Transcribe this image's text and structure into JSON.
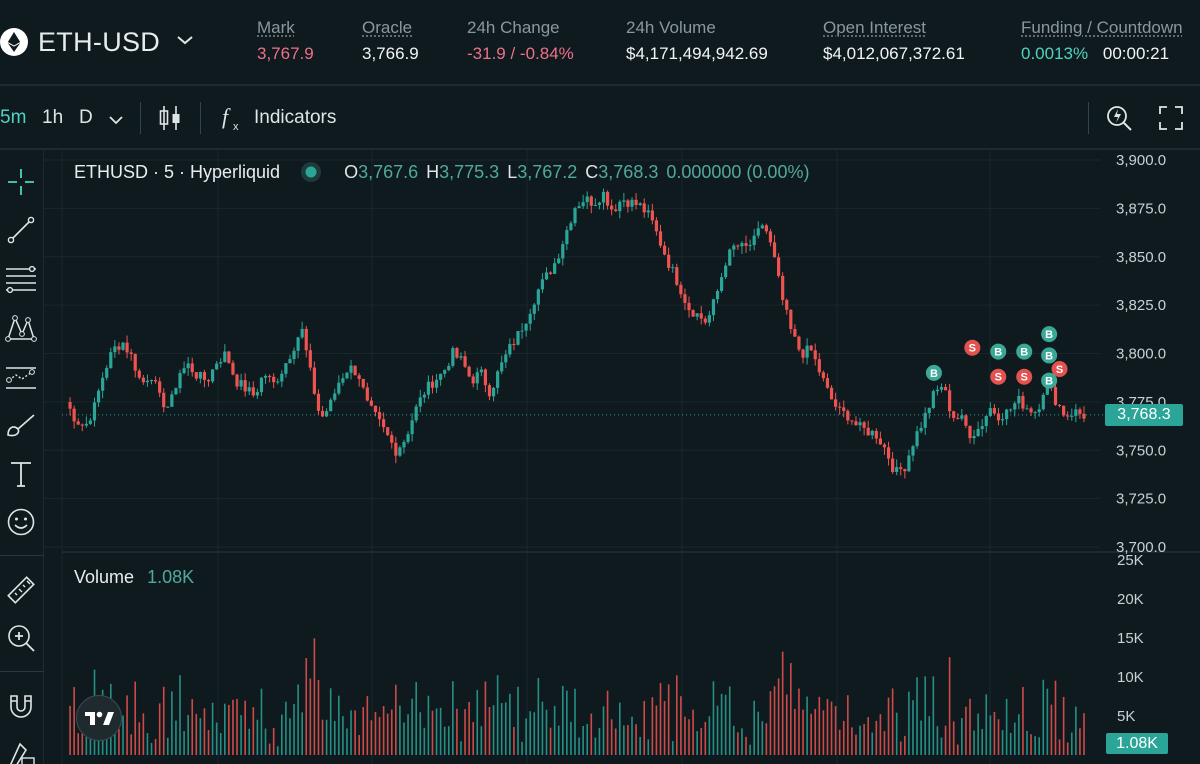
{
  "header": {
    "symbol": "ETH-USD",
    "stats": [
      {
        "label": "Mark",
        "value": "3,767.9",
        "tone": "red"
      },
      {
        "label": "Oracle",
        "value": "3,766.9",
        "tone": "white"
      },
      {
        "label": "24h Change",
        "value": "-31.9 / -0.84%",
        "tone": "red"
      },
      {
        "label": "24h Volume",
        "value": "$4,171,494,942.69",
        "tone": "white"
      },
      {
        "label": "Open Interest",
        "value": "$4,012,067,372.61",
        "tone": "white"
      },
      {
        "label": "Funding / Countdown",
        "value": "0.0013%",
        "value2": "00:00:21",
        "tone": "green"
      }
    ]
  },
  "toolbar": {
    "intervals": [
      "5m",
      "1h",
      "D"
    ],
    "indicators_label": "Indicators"
  },
  "left_tools": [
    "crosshair-icon",
    "trend-line-icon",
    "fib-retracement-icon",
    "pattern-icon",
    "forecasting-icon",
    "brush-icon",
    "text-icon",
    "emoji-icon",
    "ruler-icon",
    "zoom-in-icon",
    "magnet-icon",
    "lock-drawing-icon"
  ],
  "legend": {
    "title": "ETHUSD · 5 · Hyperliquid",
    "o_label": "O",
    "o": "3,767.6",
    "h_label": "H",
    "h": "3,775.3",
    "l_label": "L",
    "l": "3,767.2",
    "c_label": "C",
    "c": "3,768.3",
    "change": "0.000000 (0.00%)"
  },
  "volume_legend": {
    "label": "Volume",
    "value": "1.08K"
  },
  "price_tag": "3,768.3",
  "volume_tag": "1.08K",
  "colors": {
    "up": "#2aa597",
    "down": "#ef5350",
    "background": "#0f1a1f",
    "accent": "#50d2c1"
  },
  "chart_data": {
    "type": "candlestick",
    "interval": "5",
    "price_axis_ticks": [
      "3,900.0",
      "3,875.0",
      "3,850.0",
      "3,825.0",
      "3,800.0",
      "3,775.0",
      "3,750.0",
      "3,725.0",
      "3,700.0"
    ],
    "price_range": [
      3700,
      3900
    ],
    "volume_axis_ticks": [
      "25K",
      "20K",
      "15K",
      "10K",
      "5K"
    ],
    "volume_range": [
      0,
      25000
    ],
    "last_price": 3768.3,
    "close_path": [
      3775,
      3766,
      3762,
      3772,
      3790,
      3802,
      3806,
      3798,
      3784,
      3790,
      3776,
      3772,
      3790,
      3794,
      3788,
      3786,
      3796,
      3800,
      3786,
      3782,
      3778,
      3790,
      3784,
      3792,
      3802,
      3813,
      3788,
      3766,
      3773,
      3786,
      3793,
      3790,
      3773,
      3766,
      3758,
      3750,
      3756,
      3770,
      3780,
      3786,
      3790,
      3800,
      3796,
      3786,
      3790,
      3780,
      3792,
      3802,
      3810,
      3820,
      3832,
      3840,
      3848,
      3862,
      3876,
      3880,
      3878,
      3883,
      3874,
      3880,
      3878,
      3876,
      3870,
      3858,
      3846,
      3836,
      3824,
      3820,
      3816,
      3830,
      3848,
      3856,
      3854,
      3858,
      3868,
      3852,
      3828,
      3810,
      3800,
      3802,
      3790,
      3778,
      3770,
      3768,
      3762,
      3760,
      3758,
      3750,
      3738,
      3742,
      3756,
      3766,
      3778,
      3784,
      3768,
      3766,
      3758,
      3762,
      3772,
      3768,
      3770,
      3776,
      3772,
      3770,
      3786,
      3776,
      3768,
      3770,
      3768
    ],
    "markers": [
      {
        "type": "B",
        "price": 3790
      },
      {
        "type": "S",
        "price": 3803
      },
      {
        "type": "B",
        "price": 3801
      },
      {
        "type": "B",
        "price": 3801
      },
      {
        "type": "S",
        "price": 3788
      },
      {
        "type": "S",
        "price": 3788
      },
      {
        "type": "B",
        "price": 3810
      },
      {
        "type": "B",
        "price": 3799
      },
      {
        "type": "S",
        "price": 3792
      },
      {
        "type": "B",
        "price": 3786
      }
    ]
  }
}
